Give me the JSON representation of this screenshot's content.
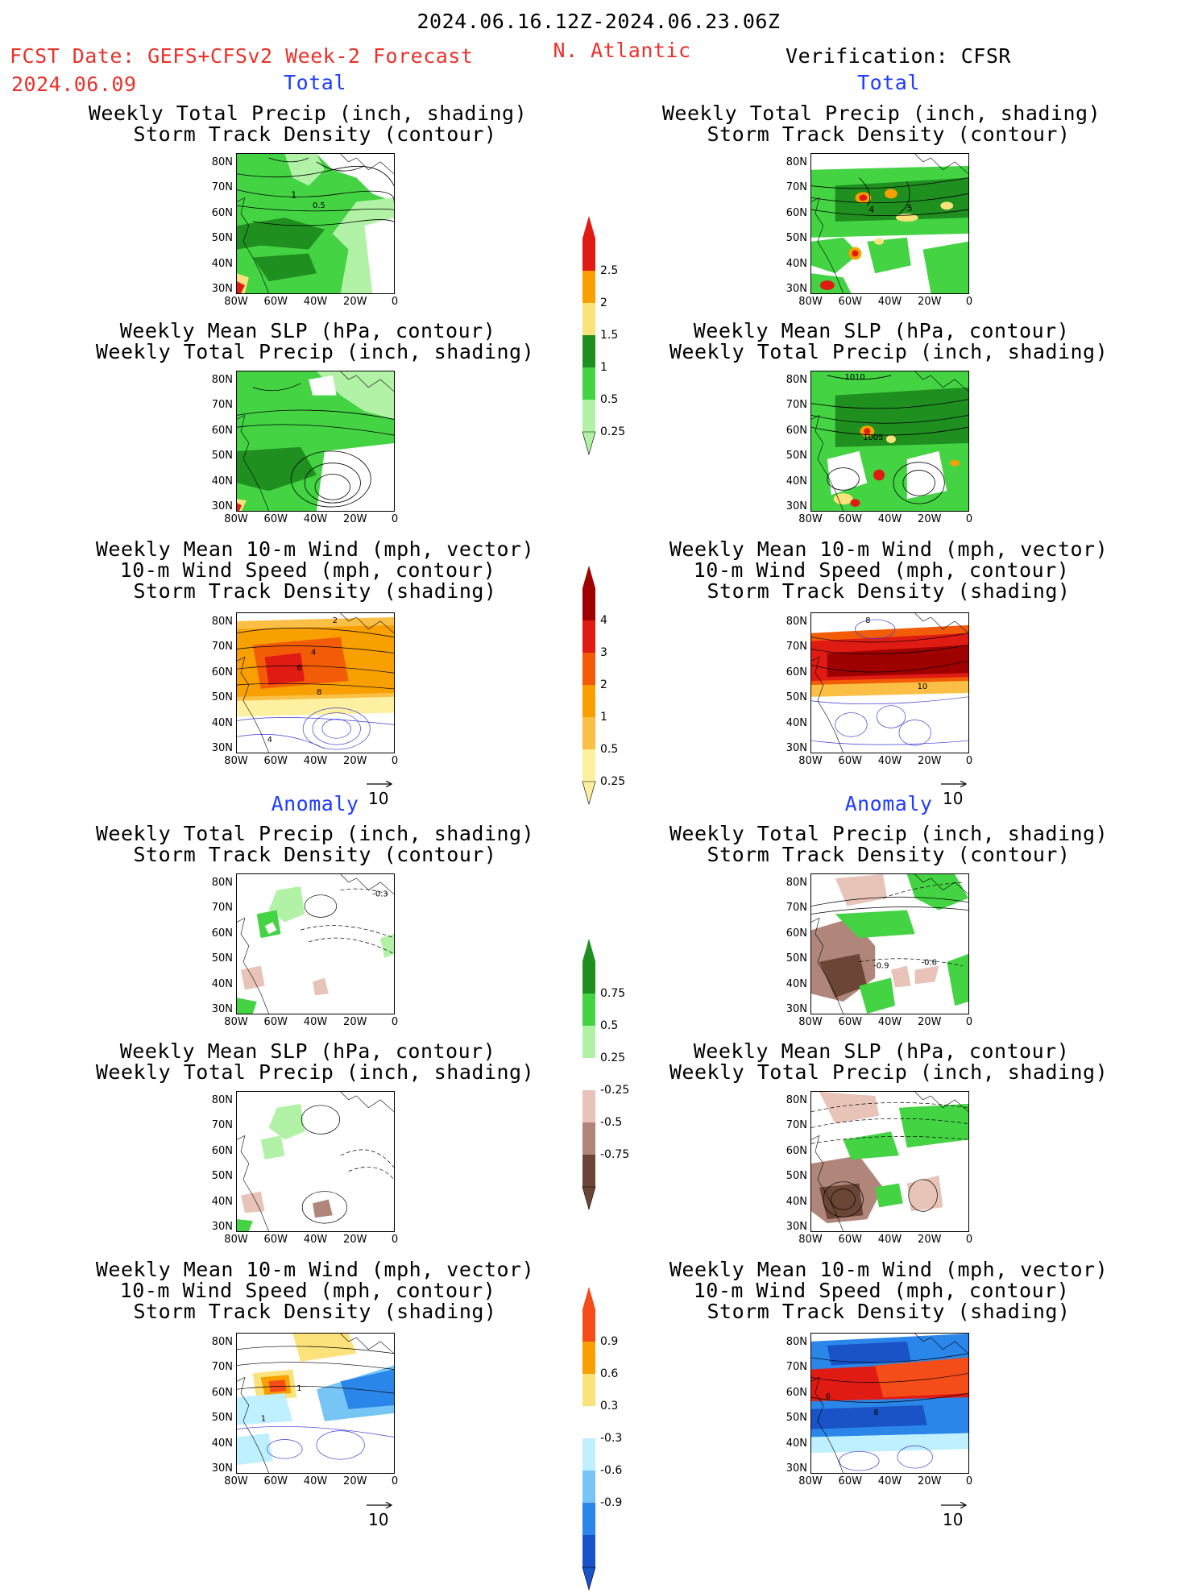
{
  "header": {
    "date_range": "2024.06.16.12Z-2024.06.23.06Z",
    "fcst_label": "FCST Date: GEFS+CFSv2 Week-2 Forecast",
    "fcst_date": "2024.06.09",
    "region": "N. Atlantic",
    "verification": "Verification: CFSR"
  },
  "sections": {
    "total": "Total",
    "anomaly": "Anomaly"
  },
  "panel_titles": {
    "precip": [
      "Weekly Total Precip (inch, shading)",
      "Storm Track Density (contour)"
    ],
    "slp": [
      "Weekly Mean SLP (hPa, contour)",
      "Weekly Total Precip (inch, shading)"
    ],
    "wind": [
      "Weekly Mean 10-m Wind (mph, vector)",
      "10-m Wind Speed (mph, contour)",
      "Storm Track Density (shading)"
    ]
  },
  "axes": {
    "lat_labels": [
      "80N",
      "70N",
      "60N",
      "50N",
      "40N",
      "30N"
    ],
    "lon_labels": [
      "80W",
      "60W",
      "40W",
      "20W",
      "0"
    ]
  },
  "reference_vector": "10",
  "contour_labels": {
    "fcst_total_precip": [
      "1",
      "0.5"
    ],
    "verif_total_precip": [
      "4",
      "5"
    ],
    "verif_total_slp": [
      "1010",
      "1005"
    ],
    "fcst_total_wind": [
      "2",
      "4",
      "6",
      "8",
      "4"
    ],
    "verif_total_wind": [
      "8",
      "10"
    ],
    "fcst_anom_precip": [
      "-0.3"
    ],
    "verif_anom_precip": [
      "-0.9",
      "-0.6"
    ],
    "fcst_anom_wind": [
      "1",
      "1"
    ],
    "verif_anom_wind": [
      "6",
      "8"
    ]
  },
  "colorbars": {
    "precip_total": {
      "labels": [
        "2.5",
        "2",
        "1.5",
        "1",
        "0.5",
        "0.25"
      ],
      "colors": [
        "#e01b14",
        "#f7a000",
        "#fce27a",
        "#1f8f1f",
        "#43d343",
        "#b2f2a6"
      ]
    },
    "storm_total": {
      "labels": [
        "4",
        "3",
        "2",
        "1",
        "0.5",
        "0.25"
      ],
      "colors": [
        "#9e0000",
        "#e01b14",
        "#f25c07",
        "#f7a000",
        "#fbbf45",
        "#fdf0a0"
      ]
    },
    "precip_anom": {
      "labels": [
        "0.75",
        "0.5",
        "0.25",
        "-0.25",
        "-0.5",
        "-0.75"
      ],
      "colors": [
        "#1f8f1f",
        "#43d343",
        "#b2f2a6",
        "#ffffff",
        "#e8c4b8",
        "#b0867a",
        "#6b4636"
      ]
    },
    "storm_anom": {
      "labels": [
        "0.9",
        "0.6",
        "0.3",
        "-0.3",
        "-0.6",
        "-0.9"
      ],
      "colors": [
        "#f54d1a",
        "#f7a000",
        "#fce27a",
        "#ffffff",
        "#bff0ff",
        "#76c5f5",
        "#2a86e8",
        "#1a52c8"
      ]
    }
  }
}
